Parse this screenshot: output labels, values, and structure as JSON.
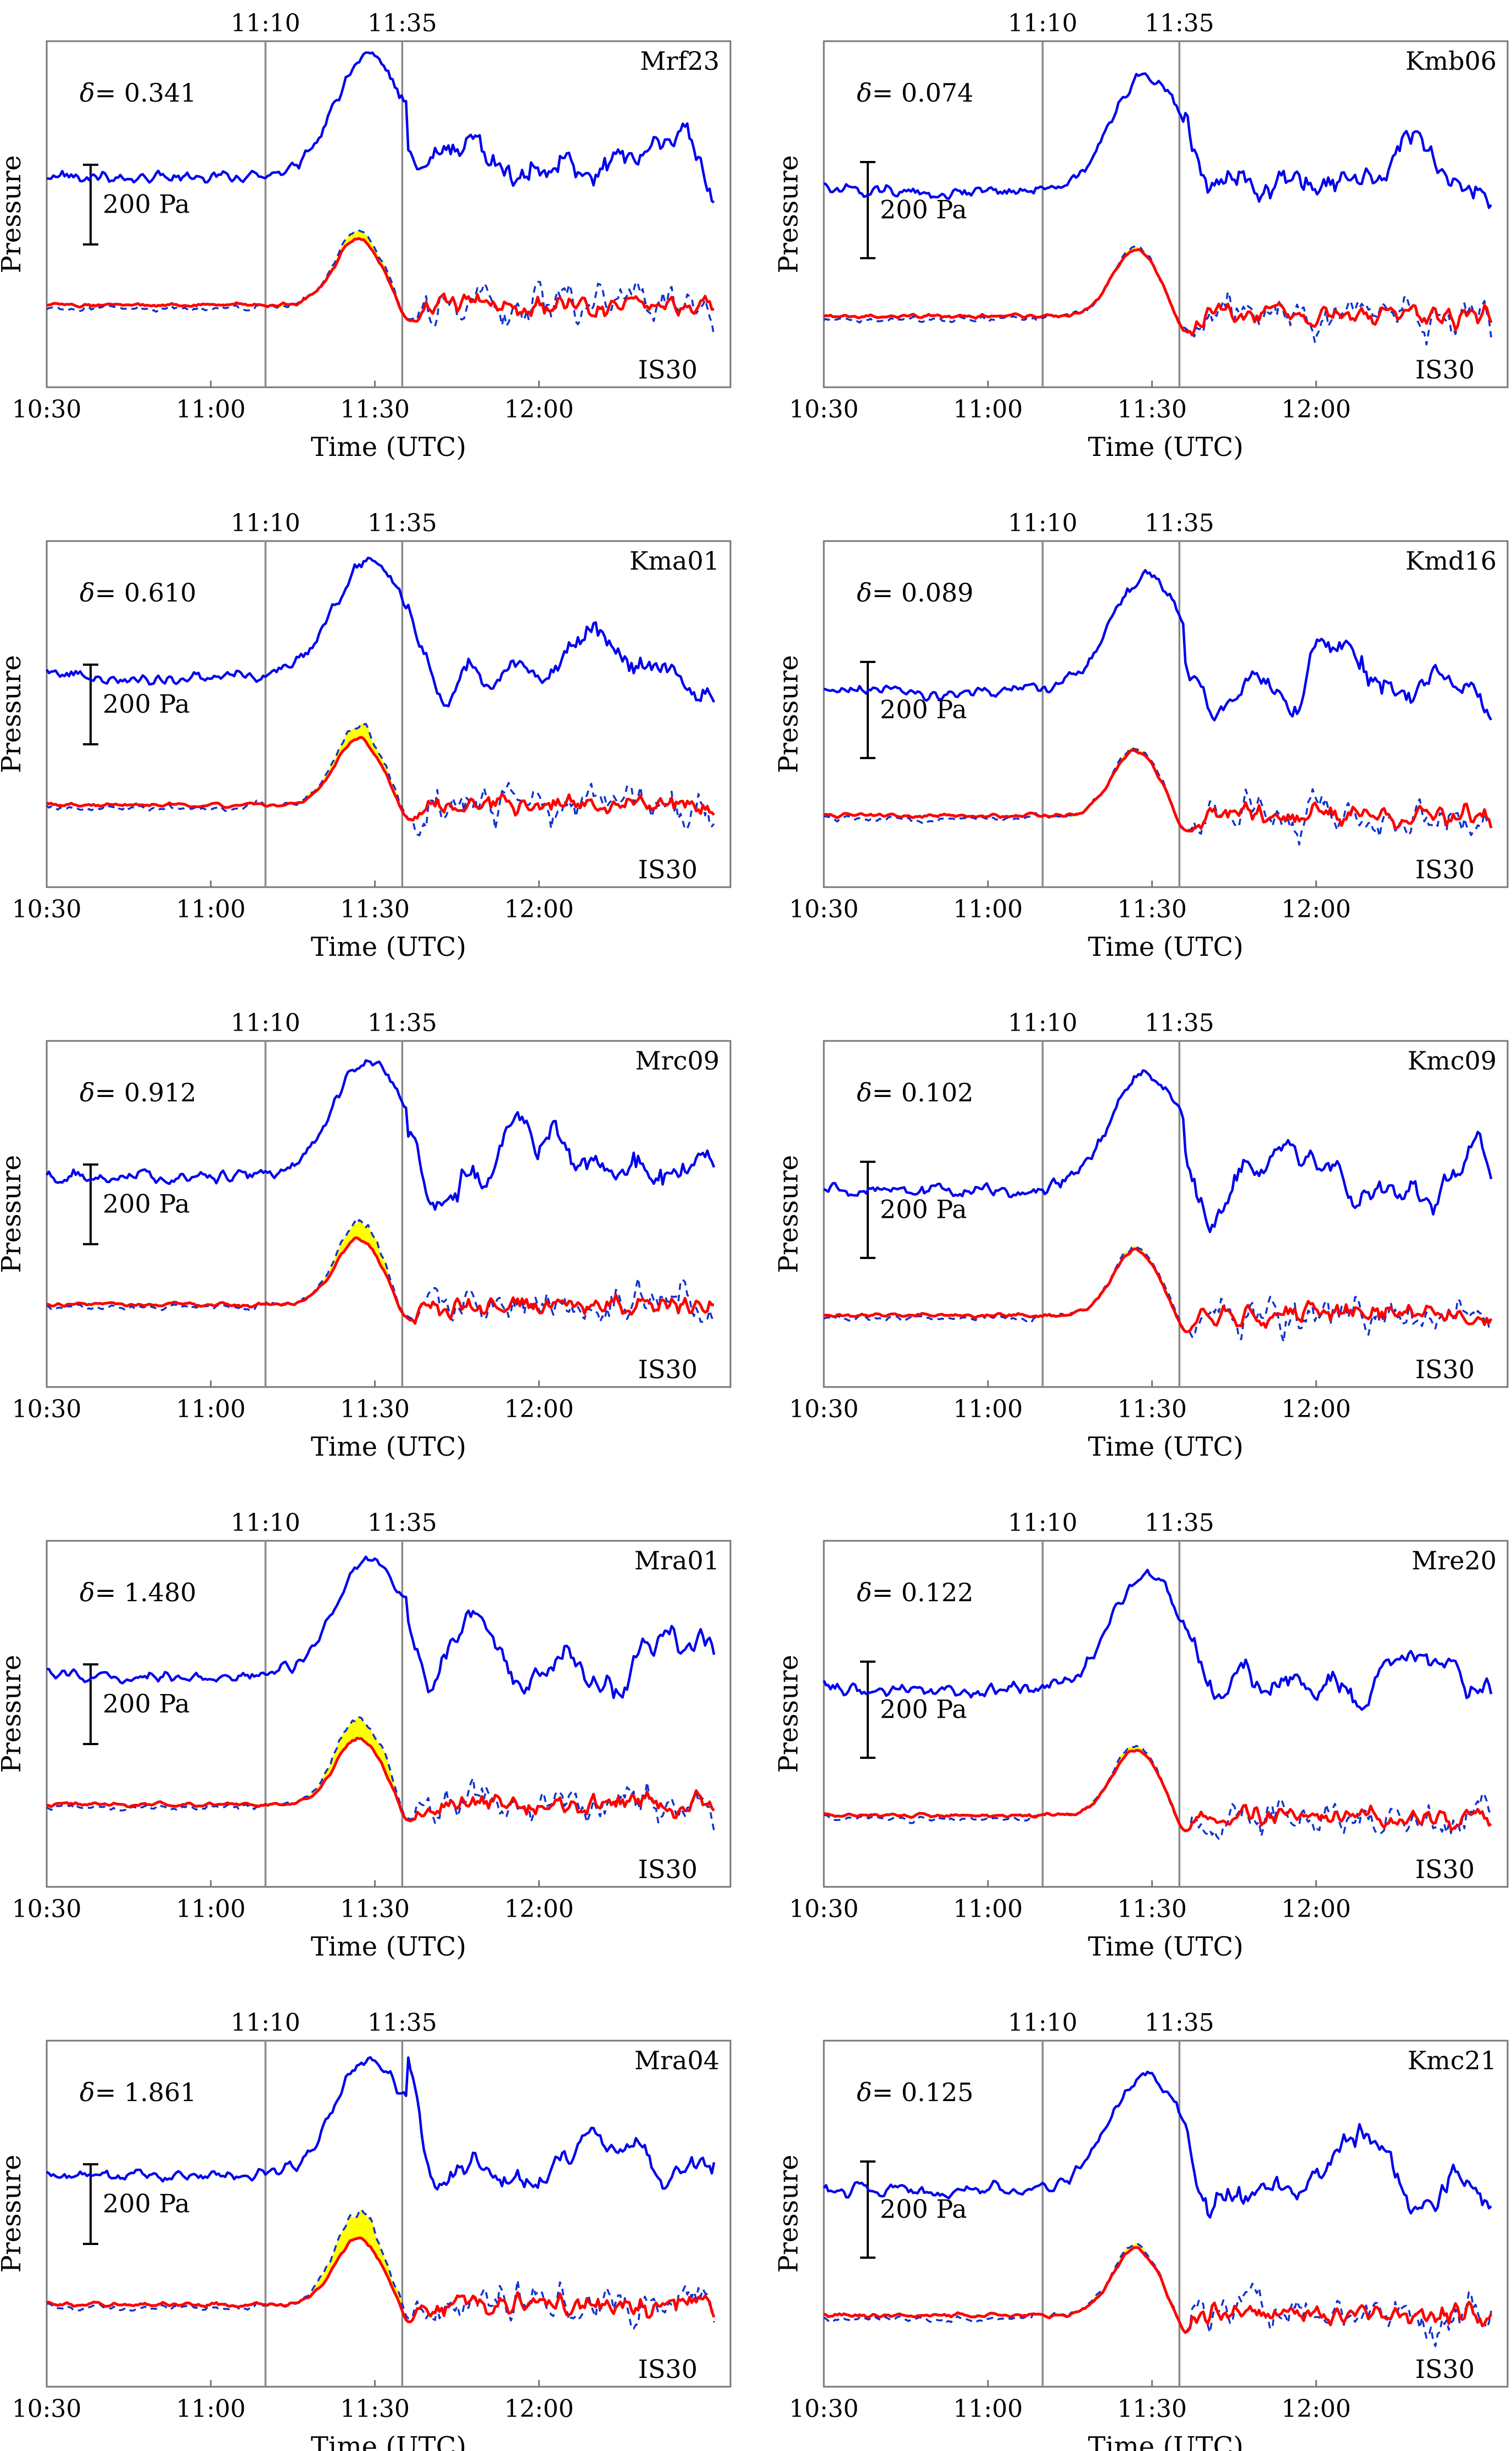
{
  "figure": {
    "colors": {
      "station": "#0000ee",
      "reference": "#ff0000",
      "dashed": "#1133cc",
      "fill": "#ffff00"
    },
    "event_labels": [
      "11:10",
      "11:35"
    ],
    "y_label": "Pressure",
    "x_label": "Time (UTC)",
    "x_ticks": [
      "10:30",
      "11:00",
      "11:30",
      "12:00"
    ],
    "scale_label": "200 Pa",
    "reference_label": "IS30",
    "delta_symbol": "δ"
  },
  "chart_data": [
    {
      "type": "line",
      "station": "Mrf23",
      "delta": "= 0.341",
      "x_range_min": [
        630,
        755
      ],
      "event_times_min": [
        670,
        695
      ],
      "scale_bar_pa": 200,
      "series": [
        {
          "name": "Mrf23",
          "color": "blue",
          "style": "solid"
        },
        {
          "name": "Mrf23 (scaled, dashed)",
          "color": "blue",
          "style": "dashed"
        },
        {
          "name": "IS30",
          "color": "red",
          "style": "solid"
        }
      ]
    },
    {
      "type": "line",
      "station": "Kmb06",
      "delta": "= 0.074",
      "x_range_min": [
        630,
        755
      ],
      "event_times_min": [
        670,
        695
      ],
      "scale_bar_pa": 200,
      "series": [
        {
          "name": "Kmb06",
          "color": "blue",
          "style": "solid"
        },
        {
          "name": "Kmb06 (scaled, dashed)",
          "color": "blue",
          "style": "dashed"
        },
        {
          "name": "IS30",
          "color": "red",
          "style": "solid"
        }
      ]
    },
    {
      "type": "line",
      "station": "Kma01",
      "delta": "= 0.610",
      "x_range_min": [
        630,
        755
      ],
      "event_times_min": [
        670,
        695
      ],
      "scale_bar_pa": 200,
      "series": [
        {
          "name": "Kma01",
          "color": "blue",
          "style": "solid"
        },
        {
          "name": "Kma01 (scaled, dashed)",
          "color": "blue",
          "style": "dashed"
        },
        {
          "name": "IS30",
          "color": "red",
          "style": "solid"
        }
      ]
    },
    {
      "type": "line",
      "station": "Kmd16",
      "delta": "= 0.089",
      "x_range_min": [
        630,
        755
      ],
      "event_times_min": [
        670,
        695
      ],
      "scale_bar_pa": 200,
      "series": [
        {
          "name": "Kmd16",
          "color": "blue",
          "style": "solid"
        },
        {
          "name": "Kmd16 (scaled, dashed)",
          "color": "blue",
          "style": "dashed"
        },
        {
          "name": "IS30",
          "color": "red",
          "style": "solid"
        }
      ]
    },
    {
      "type": "line",
      "station": "Mrc09",
      "delta": "= 0.912",
      "x_range_min": [
        630,
        755
      ],
      "event_times_min": [
        670,
        695
      ],
      "scale_bar_pa": 200,
      "series": [
        {
          "name": "Mrc09",
          "color": "blue",
          "style": "solid"
        },
        {
          "name": "Mrc09 (scaled, dashed)",
          "color": "blue",
          "style": "dashed"
        },
        {
          "name": "IS30",
          "color": "red",
          "style": "solid"
        }
      ]
    },
    {
      "type": "line",
      "station": "Kmc09",
      "delta": "= 0.102",
      "x_range_min": [
        630,
        755
      ],
      "event_times_min": [
        670,
        695
      ],
      "scale_bar_pa": 200,
      "series": [
        {
          "name": "Kmc09",
          "color": "blue",
          "style": "solid"
        },
        {
          "name": "Kmc09 (scaled, dashed)",
          "color": "blue",
          "style": "dashed"
        },
        {
          "name": "IS30",
          "color": "red",
          "style": "solid"
        }
      ]
    },
    {
      "type": "line",
      "station": "Mra01",
      "delta": "= 1.480",
      "x_range_min": [
        630,
        755
      ],
      "event_times_min": [
        670,
        695
      ],
      "scale_bar_pa": 200,
      "series": [
        {
          "name": "Mra01",
          "color": "blue",
          "style": "solid"
        },
        {
          "name": "Mra01 (scaled, dashed)",
          "color": "blue",
          "style": "dashed"
        },
        {
          "name": "IS30",
          "color": "red",
          "style": "solid"
        }
      ]
    },
    {
      "type": "line",
      "station": "Mre20",
      "delta": "= 0.122",
      "x_range_min": [
        630,
        755
      ],
      "event_times_min": [
        670,
        695
      ],
      "scale_bar_pa": 200,
      "series": [
        {
          "name": "Mre20",
          "color": "blue",
          "style": "solid"
        },
        {
          "name": "Mre20 (scaled, dashed)",
          "color": "blue",
          "style": "dashed"
        },
        {
          "name": "IS30",
          "color": "red",
          "style": "solid"
        }
      ]
    },
    {
      "type": "line",
      "station": "Mra04",
      "delta": "= 1.861",
      "x_range_min": [
        630,
        755
      ],
      "event_times_min": [
        670,
        695
      ],
      "scale_bar_pa": 200,
      "series": [
        {
          "name": "Mra04",
          "color": "blue",
          "style": "solid"
        },
        {
          "name": "Mra04 (scaled, dashed)",
          "color": "blue",
          "style": "dashed"
        },
        {
          "name": "IS30",
          "color": "red",
          "style": "solid"
        }
      ]
    },
    {
      "type": "line",
      "station": "Kmc21",
      "delta": "= 0.125",
      "x_range_min": [
        630,
        755
      ],
      "event_times_min": [
        670,
        695
      ],
      "scale_bar_pa": 200,
      "series": [
        {
          "name": "Kmc21",
          "color": "blue",
          "style": "solid"
        },
        {
          "name": "Kmc21 (scaled, dashed)",
          "color": "blue",
          "style": "dashed"
        },
        {
          "name": "IS30",
          "color": "red",
          "style": "solid"
        }
      ]
    }
  ]
}
